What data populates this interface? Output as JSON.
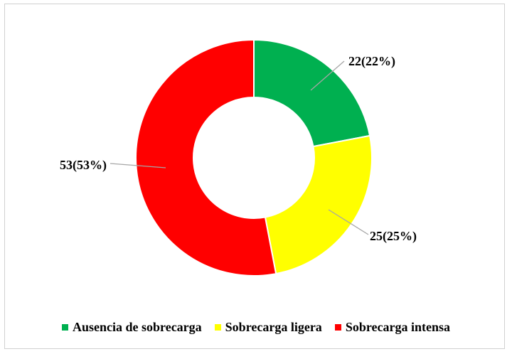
{
  "chart_data": {
    "type": "pie",
    "donut": true,
    "title": "",
    "legend_position": "bottom",
    "categories": [
      "Ausencia de sobrecarga",
      "Sobrecarga ligera",
      "Sobrecarga intensa"
    ],
    "values": [
      22,
      25,
      53
    ],
    "percents": [
      22,
      25,
      53
    ],
    "data_labels": [
      "22(22%)",
      "25(25%)",
      "53(53%)"
    ],
    "colors": [
      "#00b050",
      "#ffff00",
      "#ff0000"
    ]
  }
}
